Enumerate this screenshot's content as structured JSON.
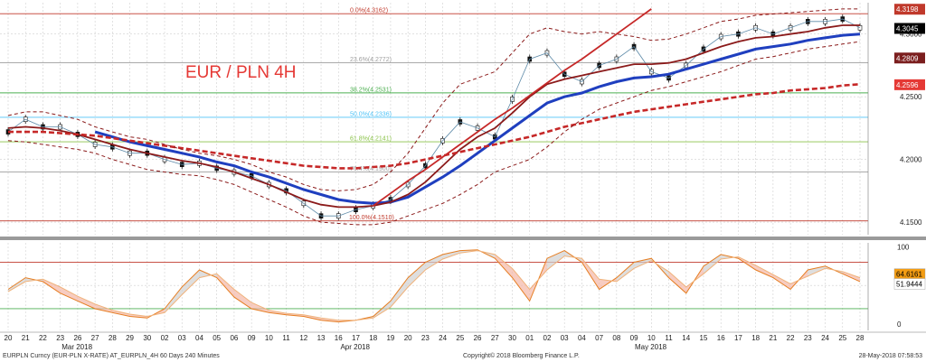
{
  "chart_data": [
    {
      "type": "line",
      "title": "EUR / PLN 4H",
      "ylim": [
        4.14,
        4.325
      ],
      "grid": true,
      "y_ticks": [
        4.15,
        4.2,
        4.25,
        4.3
      ],
      "y_tick_labels": [
        "4.1500",
        "4.2000",
        "4.2500",
        "4.3000"
      ],
      "x_tick_labels": [
        "20",
        "21",
        "22",
        "23",
        "26",
        "27",
        "28",
        "29",
        "30",
        "02",
        "03",
        "04",
        "05",
        "06",
        "09",
        "10",
        "11",
        "12",
        "13",
        "16",
        "17",
        "18",
        "19",
        "20",
        "23",
        "24",
        "25",
        "26",
        "27",
        "30",
        "01",
        "02",
        "03",
        "04",
        "07",
        "08",
        "09",
        "10",
        "11",
        "14",
        "15",
        "16",
        "17",
        "18",
        "21",
        "22",
        "23",
        "24",
        "25",
        "28"
      ],
      "month_labels": [
        "Mar 2018",
        "Apr 2018",
        "May 2018"
      ],
      "fib_levels": [
        {
          "label": "0.0%(4.3162)",
          "value": 4.3162,
          "color": "#c0392b"
        },
        {
          "label": "23.6%(4.2772)",
          "value": 4.2772,
          "color": "#9e9e9e"
        },
        {
          "label": "38.2%(4.2531)",
          "value": 4.2531,
          "color": "#4caf50"
        },
        {
          "label": "50.0%(4.2336)",
          "value": 4.2336,
          "color": "#4fc3f7"
        },
        {
          "label": "61.8%(4.2141)",
          "value": 4.2141,
          "color": "#8bc34a"
        },
        {
          "label": "76.4%(4.1900)",
          "value": 4.19,
          "color": "#9e9e9e"
        },
        {
          "label": "100.0%(4.1510)",
          "value": 4.151,
          "color": "#c0392b"
        }
      ],
      "price_tags": [
        {
          "label": "4.3198",
          "value": 4.3198,
          "bg": "#c0392b",
          "fg": "#ffffff"
        },
        {
          "label": "4.3045",
          "value": 4.3045,
          "bg": "#000000",
          "fg": "#ffffff"
        },
        {
          "label": "4.2809",
          "value": 4.2809,
          "bg": "#7b1e1e",
          "fg": "#ffffff"
        },
        {
          "label": "4.2596",
          "value": 4.2596,
          "bg": "#e53935",
          "fg": "#ffffff"
        }
      ],
      "series": [
        {
          "name": "",
          "role": "price",
          "color": "#111111",
          "values": [
            4.222,
            4.232,
            4.226,
            4.226,
            4.22,
            4.212,
            4.21,
            4.205,
            4.205,
            4.2,
            4.196,
            4.197,
            4.193,
            4.19,
            4.187,
            4.18,
            4.175,
            4.165,
            4.155,
            4.155,
            4.16,
            4.163,
            4.168,
            4.18,
            4.195,
            4.215,
            4.23,
            4.225,
            4.218,
            4.248,
            4.28,
            4.285,
            4.268,
            4.262,
            4.275,
            4.28,
            4.29,
            4.27,
            4.265,
            4.275,
            4.288,
            4.298,
            4.3,
            4.305,
            4.3,
            4.305,
            4.31,
            4.31,
            4.312,
            4.305
          ]
        },
        {
          "name": "",
          "role": "moving-average",
          "color": "#1f3fbf",
          "values": [
            null,
            null,
            null,
            null,
            null,
            4.222,
            4.218,
            4.214,
            4.211,
            4.208,
            4.205,
            4.202,
            4.198,
            4.195,
            4.19,
            4.186,
            4.181,
            4.176,
            4.172,
            4.168,
            4.166,
            4.165,
            4.166,
            4.17,
            4.178,
            4.186,
            4.195,
            4.205,
            4.215,
            4.225,
            4.235,
            4.245,
            4.25,
            4.253,
            4.258,
            4.262,
            4.265,
            4.266,
            4.268,
            4.272,
            4.276,
            4.28,
            4.284,
            4.288,
            4.29,
            4.292,
            4.295,
            4.297,
            4.299,
            4.3
          ]
        },
        {
          "name": "",
          "role": "moving-average",
          "color": "#8b1a1a",
          "values": [
            4.225,
            4.226,
            4.225,
            4.223,
            4.22,
            4.216,
            4.212,
            4.208,
            4.205,
            4.202,
            4.199,
            4.197,
            4.194,
            4.19,
            4.185,
            4.18,
            4.174,
            4.168,
            4.164,
            4.162,
            4.162,
            4.163,
            4.166,
            4.172,
            4.182,
            4.195,
            4.208,
            4.218,
            4.225,
            4.237,
            4.25,
            4.26,
            4.264,
            4.267,
            4.27,
            4.273,
            4.276,
            4.276,
            4.277,
            4.28,
            4.285,
            4.29,
            4.294,
            4.297,
            4.298,
            4.3,
            4.302,
            4.305,
            4.307,
            4.307
          ]
        },
        {
          "name": "",
          "role": "moving-average",
          "color": "#c62828",
          "dash": true,
          "values": [
            4.222,
            4.222,
            4.222,
            4.221,
            4.22,
            4.219,
            4.217,
            4.215,
            4.213,
            4.211,
            4.209,
            4.207,
            4.205,
            4.203,
            4.201,
            4.199,
            4.197,
            4.195,
            4.194,
            4.193,
            4.193,
            4.194,
            4.195,
            4.197,
            4.2,
            4.203,
            4.206,
            4.209,
            4.212,
            4.215,
            4.218,
            4.222,
            4.226,
            4.229,
            4.232,
            4.235,
            4.238,
            4.24,
            4.242,
            4.244,
            4.246,
            4.248,
            4.25,
            4.252,
            4.253,
            4.255,
            4.256,
            4.257,
            4.259,
            4.26
          ]
        },
        {
          "name": "",
          "role": "band-upper",
          "color": "#8b1a1a",
          "dash": true,
          "values": [
            4.235,
            4.238,
            4.238,
            4.235,
            4.232,
            4.226,
            4.222,
            4.218,
            4.216,
            4.212,
            4.208,
            4.205,
            4.203,
            4.2,
            4.196,
            4.19,
            4.186,
            4.18,
            4.176,
            4.175,
            4.176,
            4.18,
            4.19,
            4.205,
            4.225,
            4.245,
            4.26,
            4.265,
            4.27,
            4.285,
            4.3,
            4.305,
            4.302,
            4.3,
            4.302,
            4.3,
            4.298,
            4.295,
            4.296,
            4.3,
            4.305,
            4.31,
            4.312,
            4.315,
            4.316,
            4.317,
            4.318,
            4.319,
            4.32,
            4.32
          ]
        },
        {
          "name": "",
          "role": "band-lower",
          "color": "#8b1a1a",
          "dash": true,
          "values": [
            4.215,
            4.214,
            4.212,
            4.21,
            4.208,
            4.205,
            4.2,
            4.196,
            4.192,
            4.19,
            4.188,
            4.187,
            4.184,
            4.18,
            4.174,
            4.168,
            4.162,
            4.155,
            4.15,
            4.149,
            4.148,
            4.148,
            4.15,
            4.155,
            4.16,
            4.165,
            4.172,
            4.18,
            4.19,
            4.195,
            4.2,
            4.21,
            4.222,
            4.232,
            4.24,
            4.245,
            4.25,
            4.255,
            4.258,
            4.262,
            4.266,
            4.27,
            4.275,
            4.28,
            4.282,
            4.285,
            4.288,
            4.29,
            4.292,
            4.294
          ]
        },
        {
          "name": "",
          "role": "trendline",
          "color": "#c62828",
          "values": [
            null,
            null,
            null,
            null,
            null,
            null,
            null,
            null,
            null,
            null,
            null,
            null,
            null,
            null,
            null,
            null,
            null,
            null,
            null,
            null,
            null,
            4.163,
            4.173,
            4.183,
            4.192,
            4.202,
            4.212,
            4.222,
            4.232,
            4.241,
            4.251,
            4.261,
            4.271,
            4.28,
            4.29,
            4.3,
            4.31,
            4.32,
            null,
            null,
            null,
            null,
            null,
            null,
            null,
            null,
            null,
            null,
            null,
            null
          ]
        }
      ]
    },
    {
      "type": "line",
      "ylim": [
        -8,
        105
      ],
      "y_ticks": [
        0,
        50,
        100
      ],
      "y_tick_labels": [
        "0",
        "50",
        "100"
      ],
      "ref_levels": [
        {
          "value": 80,
          "color": "#c0392b"
        },
        {
          "value": 20,
          "color": "#4caf50"
        }
      ],
      "price_tags": [
        {
          "label": "64.6161",
          "value": 64.6161,
          "bg": "#f39c12",
          "fg": "#000000"
        },
        {
          "label": "51.9444",
          "value": 51.9444,
          "bg": "#ffffff",
          "fg": "#000000"
        }
      ],
      "series": [
        {
          "name": "",
          "role": "oscillator-fast",
          "color": "#e67e22",
          "values": [
            45,
            60,
            55,
            40,
            30,
            20,
            15,
            10,
            8,
            20,
            48,
            70,
            60,
            35,
            20,
            15,
            12,
            10,
            5,
            3,
            5,
            10,
            30,
            60,
            80,
            90,
            95,
            96,
            85,
            60,
            30,
            85,
            95,
            80,
            45,
            60,
            80,
            85,
            60,
            40,
            75,
            90,
            85,
            70,
            60,
            45,
            70,
            75,
            65,
            55
          ]
        },
        {
          "name": "",
          "role": "oscillator-slow",
          "color": "#f0b27a",
          "values": [
            42,
            55,
            58,
            48,
            36,
            26,
            18,
            13,
            10,
            15,
            38,
            60,
            65,
            45,
            28,
            18,
            14,
            12,
            8,
            5,
            5,
            8,
            22,
            48,
            70,
            84,
            92,
            95,
            90,
            72,
            45,
            70,
            88,
            85,
            58,
            55,
            72,
            82,
            68,
            48,
            65,
            84,
            87,
            76,
            64,
            52,
            62,
            72,
            68,
            60
          ]
        }
      ]
    }
  ],
  "footer": {
    "left": "EURPLN Curncy (EUR-PLN X-RATE) AT_EURPLN_4H 60 Days 240 Minutes",
    "center": "Copyright© 2018 Bloomberg Finance L.P.",
    "right": "28-May-2018 07:58:53"
  }
}
